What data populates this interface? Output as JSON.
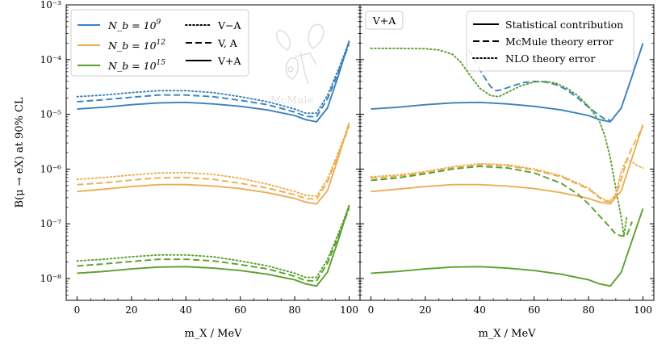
{
  "chart_data": {
    "type": "line",
    "shared_y_axis": {
      "label": "B(μ → eX) at 90% CL",
      "scale": "log",
      "ylim": [
        4e-09,
        0.001
      ],
      "tick_labels": [
        "10⁻⁸",
        "10⁻⁷",
        "10⁻⁶",
        "10⁻⁵",
        "10⁻⁴",
        "10⁻³"
      ],
      "tick_values": [
        1e-08,
        1e-07,
        1e-06,
        1e-05,
        0.0001,
        0.001
      ]
    },
    "x_axis": {
      "label": "m_X / MeV",
      "xlim": [
        -4,
        104
      ],
      "tick_values": [
        0,
        20,
        40,
        60,
        80,
        100
      ],
      "tick_labels": [
        "0",
        "20",
        "40",
        "60",
        "80",
        "100"
      ]
    },
    "colors": {
      "blue": "#3b80bd",
      "orange": "#ebae52",
      "green": "#5aa02c"
    },
    "watermark": "McMule",
    "panels": [
      {
        "id": "left",
        "legend_colors": [
          {
            "color": "blue",
            "label": "N_b = 10^9"
          },
          {
            "color": "orange",
            "label": "N_b = 10^12"
          },
          {
            "color": "green",
            "label": "N_b = 10^15"
          }
        ],
        "legend_styles": [
          {
            "dash": "dotted",
            "label": "V−A"
          },
          {
            "dash": "dashed",
            "label": "V, A"
          },
          {
            "dash": "solid",
            "label": "V+A"
          }
        ],
        "series": [
          {
            "color": "blue",
            "dash": "dotted",
            "x": [
              0,
              10,
              20,
              30,
              40,
              50,
              60,
              70,
              80,
              84,
              88,
              92,
              96,
              100
            ],
            "y": [
              2.1e-05,
              2.25e-05,
              2.5e-05,
              2.7e-05,
              2.7e-05,
              2.5e-05,
              2.1e-05,
              1.7e-05,
              1.25e-05,
              1.05e-05,
              1.05e-05,
              2.2e-05,
              6.5e-05,
              0.00021
            ]
          },
          {
            "color": "blue",
            "dash": "dashed",
            "x": [
              0,
              10,
              20,
              30,
              40,
              50,
              60,
              70,
              80,
              84,
              88,
              92,
              96,
              100
            ],
            "y": [
              1.7e-05,
              1.85e-05,
              2.05e-05,
              2.25e-05,
              2.25e-05,
              2.1e-05,
              1.8e-05,
              1.5e-05,
              1.1e-05,
              9.2e-06,
              9e-06,
              1.9e-05,
              5.8e-05,
              0.00019
            ]
          },
          {
            "color": "blue",
            "dash": "solid",
            "x": [
              0,
              10,
              20,
              30,
              40,
              50,
              60,
              70,
              80,
              84,
              88,
              92,
              96,
              100
            ],
            "y": [
              1.25e-05,
              1.35e-05,
              1.5e-05,
              1.62e-05,
              1.65e-05,
              1.55e-05,
              1.4e-05,
              1.2e-05,
              9.5e-06,
              8e-06,
              7.3e-06,
              1.3e-05,
              5e-05,
              0.00022
            ]
          },
          {
            "color": "orange",
            "dash": "dotted",
            "x": [
              0,
              10,
              20,
              30,
              40,
              50,
              60,
              70,
              80,
              84,
              88,
              92,
              96,
              100
            ],
            "y": [
              6.5e-07,
              7e-07,
              7.8e-07,
              8.5e-07,
              8.6e-07,
              8e-07,
              6.8e-07,
              5.3e-07,
              3.9e-07,
              3.3e-07,
              3.2e-07,
              6.5e-07,
              2e-06,
              6.5e-06
            ]
          },
          {
            "color": "orange",
            "dash": "dashed",
            "x": [
              0,
              10,
              20,
              30,
              40,
              50,
              60,
              70,
              80,
              84,
              88,
              92,
              96,
              100
            ],
            "y": [
              5.2e-07,
              5.6e-07,
              6.3e-07,
              6.9e-07,
              7e-07,
              6.5e-07,
              5.5e-07,
              4.5e-07,
              3.4e-07,
              2.9e-07,
              2.8e-07,
              5.8e-07,
              1.8e-06,
              6e-06
            ]
          },
          {
            "color": "orange",
            "dash": "solid",
            "x": [
              0,
              10,
              20,
              30,
              40,
              50,
              60,
              70,
              80,
              84,
              88,
              92,
              96,
              100
            ],
            "y": [
              3.9e-07,
              4.3e-07,
              4.8e-07,
              5.2e-07,
              5.2e-07,
              4.9e-07,
              4.4e-07,
              3.7e-07,
              2.9e-07,
              2.5e-07,
              2.3e-07,
              4e-07,
              1.6e-06,
              7e-06
            ]
          },
          {
            "color": "green",
            "dash": "dotted",
            "x": [
              0,
              10,
              20,
              30,
              40,
              50,
              60,
              70,
              80,
              84,
              88,
              92,
              96,
              100
            ],
            "y": [
              2.1e-08,
              2.25e-08,
              2.5e-08,
              2.7e-08,
              2.7e-08,
              2.5e-08,
              2.1e-08,
              1.7e-08,
              1.25e-08,
              1.05e-08,
              1.05e-08,
              2.2e-08,
              6.5e-08,
              2.1e-07
            ]
          },
          {
            "color": "green",
            "dash": "dashed",
            "x": [
              0,
              10,
              20,
              30,
              40,
              50,
              60,
              70,
              80,
              84,
              88,
              92,
              96,
              100
            ],
            "y": [
              1.7e-08,
              1.85e-08,
              2.05e-08,
              2.25e-08,
              2.25e-08,
              2.1e-08,
              1.8e-08,
              1.5e-08,
              1.1e-08,
              9.2e-09,
              9e-09,
              1.9e-08,
              5.8e-08,
              1.9e-07
            ]
          },
          {
            "color": "green",
            "dash": "solid",
            "x": [
              0,
              10,
              20,
              30,
              40,
              50,
              60,
              70,
              80,
              84,
              88,
              92,
              96,
              100
            ],
            "y": [
              1.25e-08,
              1.35e-08,
              1.5e-08,
              1.62e-08,
              1.65e-08,
              1.55e-08,
              1.4e-08,
              1.2e-08,
              9.5e-09,
              8e-09,
              7.3e-09,
              1.3e-08,
              5e-08,
              2.2e-07
            ]
          }
        ]
      },
      {
        "id": "right",
        "panel_label": "V+A",
        "legend_styles": [
          {
            "dash": "solid",
            "label": "Statistical contribution"
          },
          {
            "dash": "dashed",
            "label": "McMule theory error"
          },
          {
            "dash": "dotted",
            "label": "NLO theory error"
          }
        ],
        "series": [
          {
            "color": "blue",
            "dash": "solid",
            "x": [
              0,
              10,
              20,
              30,
              40,
              50,
              60,
              70,
              80,
              84,
              88,
              92,
              96,
              100
            ],
            "y": [
              1.25e-05,
              1.35e-05,
              1.5e-05,
              1.62e-05,
              1.65e-05,
              1.55e-05,
              1.4e-05,
              1.2e-05,
              9.5e-06,
              8e-06,
              7.3e-06,
              1.3e-05,
              5e-05,
              0.0002
            ]
          },
          {
            "color": "blue",
            "dash": "dashed",
            "x": [
              36,
              40,
              44,
              46,
              48,
              52,
              56,
              60,
              64,
              68,
              72,
              76,
              80,
              84,
              86,
              88
            ],
            "y": [
              0.00015,
              6.5e-05,
              3.2e-05,
              2.7e-05,
              2.8e-05,
              3.3e-05,
              3.8e-05,
              4e-05,
              3.9e-05,
              3.5e-05,
              2.8e-05,
              2e-05,
              1.35e-05,
              9.5e-06,
              8.2e-06,
              7.8e-06
            ]
          },
          {
            "color": "green",
            "dash": "dotted",
            "x": [
              0,
              10,
              20,
              25,
              30,
              33,
              36,
              40,
              44,
              47,
              50,
              55,
              60,
              64,
              68,
              72,
              76,
              80,
              84,
              86,
              88,
              90,
              92,
              93,
              94
            ],
            "y": [
              0.00016,
              0.00016,
              0.000158,
              0.00015,
              0.000125,
              9e-05,
              5.5e-05,
              3e-05,
              2.2e-05,
              2.1e-05,
              2.5e-05,
              3.3e-05,
              3.9e-05,
              4e-05,
              3.7e-05,
              3e-05,
              2.2e-05,
              1.4e-05,
              7.5e-06,
              4e-06,
              1.6e-06,
              4.5e-07,
              1.3e-07,
              6e-08,
              1.3e-07
            ]
          },
          {
            "color": "orange",
            "dash": "dotted",
            "x": [
              0,
              10,
              20,
              30,
              40,
              50,
              60,
              70,
              80,
              84,
              86,
              88,
              90,
              92,
              94,
              96,
              98,
              100
            ],
            "y": [
              7.2e-07,
              7.8e-07,
              9e-07,
              1.1e-06,
              1.25e-06,
              1.2e-06,
              1e-06,
              7.5e-07,
              4.5e-07,
              3.1e-07,
              2.7e-07,
              2.6e-07,
              3.5e-07,
              9e-07,
              1.5e-06,
              1.35e-06,
              1.15e-06,
              1.05e-06
            ]
          },
          {
            "color": "orange",
            "dash": "dashed",
            "x": [
              0,
              10,
              20,
              30,
              40,
              50,
              60,
              70,
              80,
              84,
              86,
              88,
              90,
              92,
              94,
              96,
              100
            ],
            "y": [
              6.8e-07,
              7.4e-07,
              8.6e-07,
              1.05e-06,
              1.2e-06,
              1.15e-06,
              9.6e-07,
              7.2e-07,
              4.3e-07,
              3e-07,
              2.6e-07,
              2.5e-07,
              3.2e-07,
              6.5e-07,
              1.4e-06,
              2.5e-06,
              6e-06
            ]
          },
          {
            "color": "orange",
            "dash": "solid",
            "x": [
              0,
              10,
              20,
              30,
              40,
              50,
              60,
              70,
              80,
              84,
              88,
              92,
              96,
              100
            ],
            "y": [
              3.9e-07,
              4.3e-07,
              4.8e-07,
              5.2e-07,
              5.2e-07,
              4.9e-07,
              4.4e-07,
              3.7e-07,
              2.9e-07,
              2.5e-07,
              2.3e-07,
              4e-07,
              1.6e-06,
              6.5e-06
            ]
          },
          {
            "color": "green",
            "dash": "dashed",
            "x": [
              0,
              10,
              20,
              30,
              40,
              50,
              60,
              70,
              76,
              80,
              84,
              88,
              90,
              92,
              94,
              96
            ],
            "y": [
              6.2e-07,
              6.9e-07,
              8.2e-07,
              1e-06,
              1.12e-06,
              1.05e-06,
              8.5e-07,
              5.5e-07,
              3.5e-07,
              2.3e-07,
              1.4e-07,
              8.5e-08,
              6.5e-08,
              6e-08,
              6e-08,
              1.1e-07
            ]
          },
          {
            "color": "green",
            "dash": "solid",
            "x": [
              0,
              10,
              20,
              30,
              40,
              50,
              60,
              70,
              80,
              84,
              88,
              92,
              96,
              100
            ],
            "y": [
              1.25e-08,
              1.35e-08,
              1.5e-08,
              1.62e-08,
              1.65e-08,
              1.55e-08,
              1.4e-08,
              1.2e-08,
              9.5e-09,
              8e-09,
              7.3e-09,
              1.3e-08,
              5e-08,
              1.9e-07
            ]
          }
        ]
      }
    ]
  }
}
